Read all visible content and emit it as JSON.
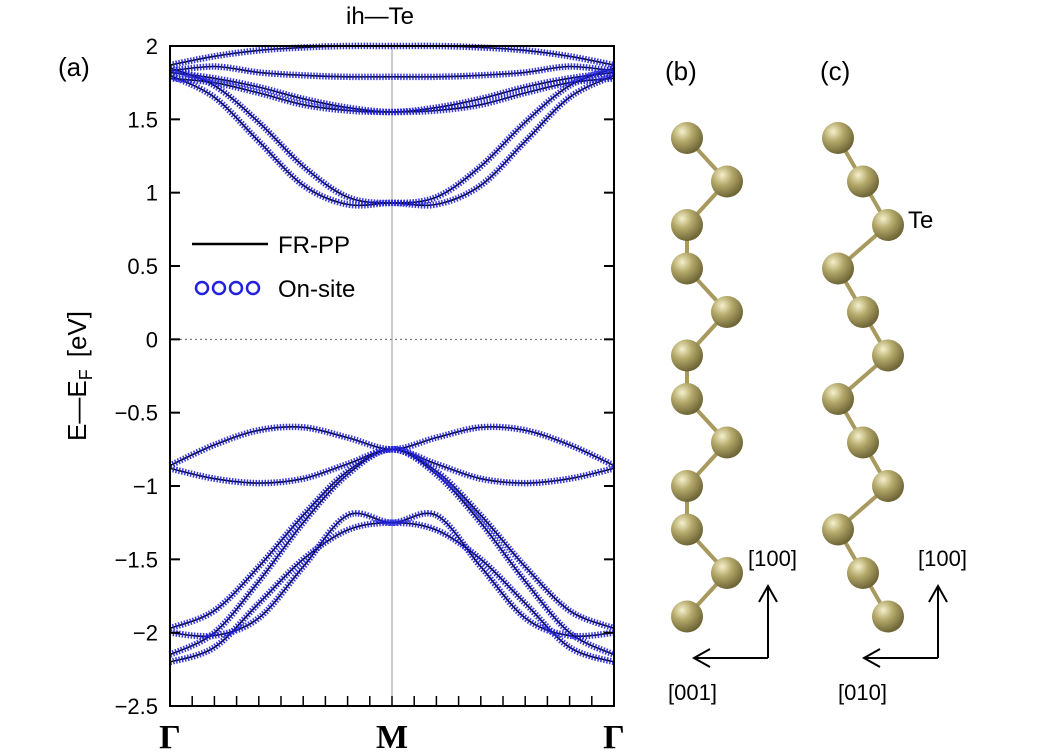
{
  "chart_data": {
    "type": "line",
    "title": "ih—Te",
    "panel_label": "(a)",
    "ylabel": "E—E",
    "ylabel_sub": "F",
    "ylabel_unit": "[eV]",
    "ylim": [
      -2.5,
      2
    ],
    "yticks": [
      -2.5,
      -2,
      -1.5,
      -1,
      -0.5,
      0,
      0.5,
      1,
      1.5,
      2
    ],
    "ytick_labels": [
      "−2.5",
      "−2",
      "−1.5",
      "−1",
      "−0.5",
      "0",
      "0.5",
      "1",
      "1.5",
      "2"
    ],
    "xlim": [
      0,
      1
    ],
    "kpoints": [
      {
        "label": "Γ",
        "x": 0
      },
      {
        "label": "M",
        "x": 0.5
      },
      {
        "label": "Γ",
        "x": 1
      }
    ],
    "fermi_level": 0,
    "grid": false,
    "legend_position": "center-left",
    "series": [
      {
        "name": "FR-PP",
        "style": "line",
        "color": "#000000"
      },
      {
        "name": "On-site",
        "style": "circles",
        "color": "#2222dd"
      }
    ],
    "bands": [
      {
        "x": [
          0,
          0.1,
          0.2,
          0.3,
          0.4,
          0.5,
          0.6,
          0.7,
          0.8,
          0.9,
          1
        ],
        "y": [
          -2.2,
          -2.1,
          -1.8,
          -1.5,
          -1.3,
          -1.25,
          -1.3,
          -1.5,
          -1.8,
          -2.1,
          -2.2
        ]
      },
      {
        "x": [
          0,
          0.1,
          0.2,
          0.3,
          0.4,
          0.5,
          0.6,
          0.7,
          0.8,
          0.9,
          1
        ],
        "y": [
          -2.15,
          -2.0,
          -1.65,
          -1.25,
          -0.92,
          -0.75,
          -0.92,
          -1.25,
          -1.65,
          -2.0,
          -2.15
        ]
      },
      {
        "x": [
          0,
          0.1,
          0.2,
          0.3,
          0.4,
          0.5,
          0.6,
          0.7,
          0.8,
          0.9,
          1
        ],
        "y": [
          -2.0,
          -2.02,
          -1.9,
          -1.55,
          -1.2,
          -1.25,
          -1.2,
          -1.55,
          -1.9,
          -2.02,
          -2.0
        ]
      },
      {
        "x": [
          0,
          0.1,
          0.2,
          0.3,
          0.4,
          0.5,
          0.6,
          0.7,
          0.8,
          0.9,
          1
        ],
        "y": [
          -1.97,
          -1.85,
          -1.55,
          -1.2,
          -0.9,
          -0.75,
          -0.9,
          -1.2,
          -1.55,
          -1.85,
          -1.97
        ]
      },
      {
        "x": [
          0,
          0.1,
          0.2,
          0.3,
          0.4,
          0.5,
          0.6,
          0.7,
          0.8,
          0.9,
          1
        ],
        "y": [
          -0.88,
          -0.95,
          -0.98,
          -0.95,
          -0.85,
          -0.75,
          -0.85,
          -0.95,
          -0.98,
          -0.95,
          -0.88
        ]
      },
      {
        "x": [
          0,
          0.1,
          0.2,
          0.3,
          0.4,
          0.5,
          0.6,
          0.7,
          0.8,
          0.9,
          1
        ],
        "y": [
          -0.86,
          -0.72,
          -0.62,
          -0.6,
          -0.67,
          -0.75,
          -0.67,
          -0.6,
          -0.62,
          -0.72,
          -0.86
        ]
      },
      {
        "x": [
          0,
          0.1,
          0.2,
          0.3,
          0.4,
          0.5,
          0.6,
          0.7,
          0.8,
          0.9,
          1
        ],
        "y": [
          1.8,
          1.65,
          1.35,
          1.05,
          0.92,
          0.93,
          0.92,
          1.05,
          1.35,
          1.65,
          1.8
        ]
      },
      {
        "x": [
          0,
          0.1,
          0.2,
          0.3,
          0.4,
          0.5,
          0.6,
          0.7,
          0.8,
          0.9,
          1
        ],
        "y": [
          1.85,
          1.73,
          1.48,
          1.18,
          0.97,
          0.93,
          0.97,
          1.18,
          1.48,
          1.73,
          1.85
        ]
      },
      {
        "x": [
          0,
          0.1,
          0.2,
          0.3,
          0.4,
          0.5,
          0.6,
          0.7,
          0.8,
          0.9,
          1
        ],
        "y": [
          1.78,
          1.75,
          1.68,
          1.6,
          1.56,
          1.55,
          1.56,
          1.6,
          1.68,
          1.75,
          1.78
        ]
      },
      {
        "x": [
          0,
          0.1,
          0.2,
          0.3,
          0.4,
          0.5,
          0.6,
          0.7,
          0.8,
          0.9,
          1
        ],
        "y": [
          1.82,
          1.78,
          1.72,
          1.64,
          1.58,
          1.55,
          1.58,
          1.64,
          1.72,
          1.78,
          1.82
        ]
      },
      {
        "x": [
          0,
          0.1,
          0.2,
          0.3,
          0.4,
          0.5,
          0.6,
          0.7,
          0.8,
          0.9,
          1
        ],
        "y": [
          1.83,
          1.86,
          1.82,
          1.8,
          1.79,
          1.79,
          1.79,
          1.8,
          1.82,
          1.86,
          1.83
        ]
      },
      {
        "x": [
          0,
          0.1,
          0.2,
          0.3,
          0.4,
          0.5,
          0.6,
          0.7,
          0.8,
          0.9,
          1
        ],
        "y": [
          1.87,
          1.93,
          1.97,
          1.99,
          2.0,
          2.0,
          2.0,
          1.99,
          1.97,
          1.93,
          1.87
        ]
      }
    ]
  },
  "structures": [
    {
      "panel_label": "(b)",
      "atom_label": "",
      "axis_up": "[100]",
      "axis_side": "[001]",
      "atoms_x": [
        0,
        1,
        0,
        0,
        1,
        0,
        0,
        1,
        0,
        0,
        1,
        0
      ],
      "atoms_y": [
        0,
        1,
        2,
        3,
        4,
        5,
        6,
        7,
        8,
        9,
        10,
        11
      ]
    },
    {
      "panel_label": "(c)",
      "atom_label": "Te",
      "axis_up": "[100]",
      "axis_side": "[010]",
      "atoms_x": [
        0,
        1,
        2,
        0,
        1,
        2,
        0,
        1,
        2,
        0,
        1,
        2
      ],
      "atoms_y": [
        0,
        1,
        2,
        3,
        4,
        5,
        6,
        7,
        8,
        9,
        10,
        11
      ]
    }
  ],
  "colors": {
    "atom": "#b4a96a",
    "atom_highlight": "#f5f0cc",
    "atom_shadow": "#6f6638",
    "bond": "#a89a5f",
    "onsite": "#2222dd",
    "frpp": "#000000"
  }
}
